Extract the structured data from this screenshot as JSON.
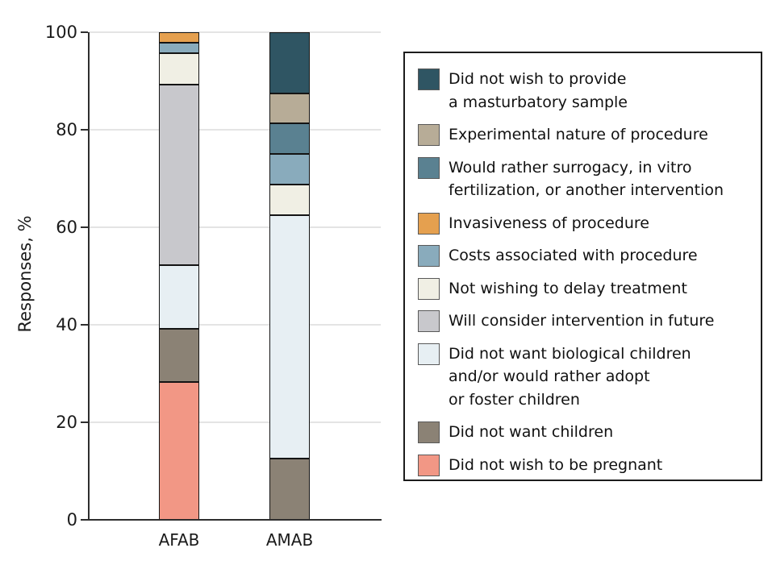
{
  "chart_data": {
    "type": "stacked-bar",
    "title": "",
    "ylabel": "Responses, %",
    "xlabel": "",
    "categories": [
      "AFAB",
      "AMAB"
    ],
    "ylim": [
      0,
      100
    ],
    "yticks": [
      0,
      20,
      40,
      60,
      80,
      100
    ],
    "grid": true,
    "legend_position": "right",
    "series_note": "series listed in legend order (top of stack first); values are percent for [AFAB, AMAB]",
    "series": [
      {
        "name": "Did not wish to provide a masturbatory sample",
        "label_lines": [
          "Did not wish to provide",
          "a masturbatory sample"
        ],
        "color": "#2F5563",
        "values": [
          0,
          12.5
        ]
      },
      {
        "name": "Experimental nature of procedure",
        "label_lines": [
          "Experimental nature of procedure"
        ],
        "color": "#B7AC97",
        "values": [
          0,
          6.25
        ]
      },
      {
        "name": "Would rather surrogacy, in vitro fertilization, or another intervention",
        "label_lines": [
          "Would rather surrogacy, in vitro",
          "fertilization, or another intervention"
        ],
        "color": "#5A8191",
        "values": [
          0,
          6.25
        ]
      },
      {
        "name": "Invasiveness of procedure",
        "label_lines": [
          "Invasiveness of procedure"
        ],
        "color": "#E5A04F",
        "values": [
          2.1,
          0
        ]
      },
      {
        "name": "Costs associated with procedure",
        "label_lines": [
          "Costs associated with procedure"
        ],
        "color": "#89ABBC",
        "values": [
          2.2,
          6.25
        ]
      },
      {
        "name": "Not wishing to delay treatment",
        "label_lines": [
          "Not wishing to delay treatment"
        ],
        "color": "#F0EFE4",
        "values": [
          6.5,
          6.25
        ]
      },
      {
        "name": "Will consider intervention in future",
        "label_lines": [
          "Will consider intervention in future"
        ],
        "color": "#C8C8CC",
        "values": [
          37.0,
          0
        ]
      },
      {
        "name": "Did not want biological children and/or would rather adopt or foster children",
        "label_lines": [
          "Did not want biological children",
          "and/or would rather adopt",
          "or foster children"
        ],
        "color": "#E7EFF3",
        "values": [
          13.0,
          50.0
        ]
      },
      {
        "name": "Did not want children",
        "label_lines": [
          "Did not want children"
        ],
        "color": "#8B8275",
        "values": [
          10.9,
          12.5
        ]
      },
      {
        "name": "Did not wish to be pregnant",
        "label_lines": [
          "Did not wish to be pregnant"
        ],
        "color": "#F29785",
        "values": [
          28.3,
          0
        ]
      }
    ],
    "colors": {
      "axis": "#2e2e2e",
      "gridline": "#e4e4e4",
      "segment_border": "#141414",
      "legend_border": "#1c1c1c",
      "swatch_border": "#595959",
      "text": "#1a1a1a",
      "background": "#ffffff"
    }
  }
}
